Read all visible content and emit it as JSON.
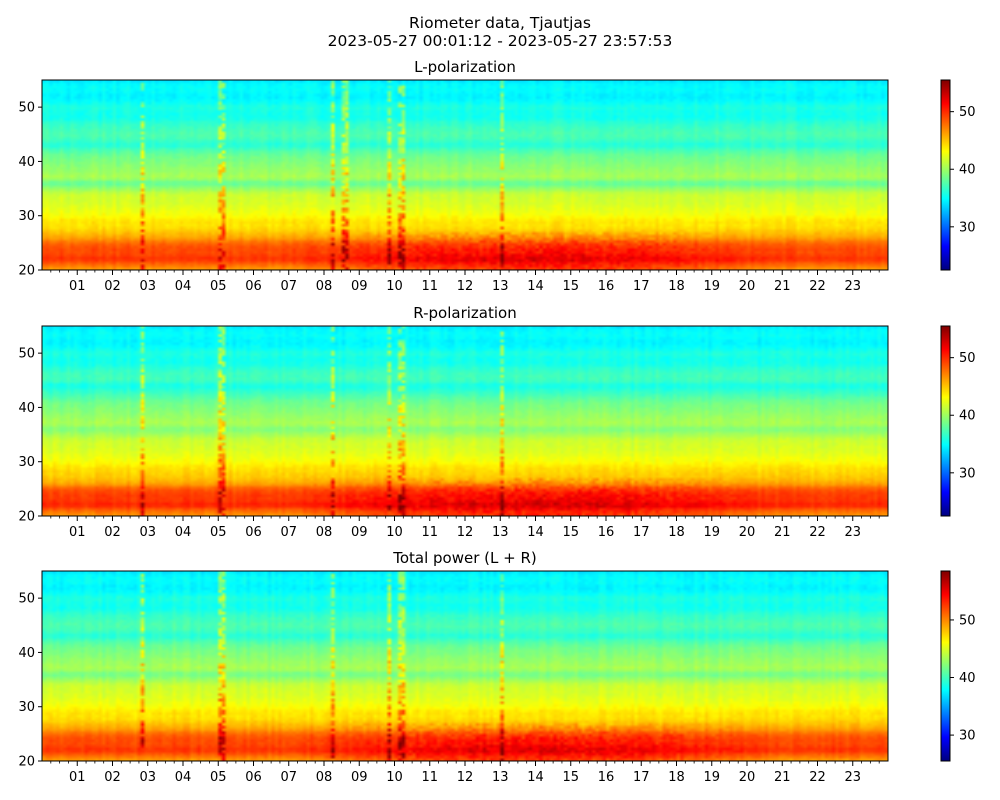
{
  "figure": {
    "title_line1": "Riometer data, Tjautjas",
    "title_line2": "2023-05-27 00:01:12 - 2023-05-27 23:57:53"
  },
  "colormap": [
    "#00007f",
    "#0000ff",
    "#007fff",
    "#00ffff",
    "#7fff7f",
    "#ffff00",
    "#ff7f00",
    "#ff0000",
    "#7f0000"
  ],
  "chart_data": [
    {
      "type": "heatmap",
      "title": "L-polarization",
      "xlabel": "",
      "ylabel": "",
      "x_unit": "hour of day (UTC)",
      "xlim": [
        0,
        24
      ],
      "ylim": [
        20,
        55
      ],
      "x_tick_labels": [
        "01",
        "02",
        "03",
        "04",
        "05",
        "06",
        "07",
        "08",
        "09",
        "10",
        "11",
        "12",
        "13",
        "14",
        "15",
        "16",
        "17",
        "18",
        "19",
        "20",
        "21",
        "22",
        "23"
      ],
      "y_ticks": [
        20,
        30,
        40,
        50
      ],
      "color_range": [
        22.5,
        55.5
      ],
      "colorbar_ticks": [
        30,
        40,
        50
      ],
      "profile_y": [
        20,
        21,
        22,
        23,
        24,
        25,
        26,
        27,
        28,
        29,
        30,
        32,
        34,
        36,
        37,
        38,
        40,
        41,
        42,
        43,
        44,
        45,
        46,
        47,
        48,
        49,
        50,
        51,
        52,
        53,
        54,
        55
      ],
      "profile_values": [
        46,
        48,
        50,
        49,
        49,
        48,
        46,
        45,
        44,
        44,
        43,
        42,
        41.5,
        38,
        40.5,
        40,
        39,
        38.5,
        37.5,
        36,
        37,
        37.5,
        37,
        36.5,
        35.5,
        35.5,
        36,
        35,
        34.5,
        35,
        35,
        34
      ],
      "activity_window_hours": [
        7,
        21
      ],
      "activity_increase": 3,
      "spike_hours": [
        2.85,
        5.1,
        8.25,
        8.6,
        9.85,
        10.2,
        13.05
      ]
    },
    {
      "type": "heatmap",
      "title": "R-polarization",
      "xlabel": "",
      "ylabel": "",
      "x_unit": "hour of day (UTC)",
      "xlim": [
        0,
        24
      ],
      "ylim": [
        20,
        55
      ],
      "x_tick_labels": [
        "01",
        "02",
        "03",
        "04",
        "05",
        "06",
        "07",
        "08",
        "09",
        "10",
        "11",
        "12",
        "13",
        "14",
        "15",
        "16",
        "17",
        "18",
        "19",
        "20",
        "21",
        "22",
        "23"
      ],
      "y_ticks": [
        20,
        30,
        40,
        50
      ],
      "color_range": [
        22.5,
        55.5
      ],
      "colorbar_ticks": [
        30,
        40,
        50
      ],
      "profile_y": [
        20,
        21,
        22,
        23,
        24,
        25,
        26,
        27,
        28,
        29,
        30,
        32,
        34,
        36,
        37,
        38,
        40,
        41,
        42,
        43,
        44,
        45,
        46,
        47,
        48,
        49,
        50,
        51,
        52,
        53,
        54,
        55
      ],
      "profile_values": [
        46.5,
        48,
        50.5,
        49.5,
        49.5,
        48.5,
        46,
        45,
        44.5,
        44,
        43,
        42,
        41.5,
        39,
        40.5,
        40,
        39,
        38.5,
        37.5,
        36.5,
        35.5,
        37,
        37,
        36.5,
        35.5,
        35.5,
        36,
        35,
        34.5,
        35,
        35,
        34
      ],
      "activity_window_hours": [
        7,
        21
      ],
      "activity_increase": 3,
      "spike_hours": [
        2.85,
        5.1,
        8.25,
        9.85,
        10.2,
        13.05
      ]
    },
    {
      "type": "heatmap",
      "title": "Total power (L + R)",
      "xlabel": "",
      "ylabel": "",
      "x_unit": "hour of day (UTC)",
      "xlim": [
        0,
        24
      ],
      "ylim": [
        20,
        55
      ],
      "x_tick_labels": [
        "01",
        "02",
        "03",
        "04",
        "05",
        "06",
        "07",
        "08",
        "09",
        "10",
        "11",
        "12",
        "13",
        "14",
        "15",
        "16",
        "17",
        "18",
        "19",
        "20",
        "21",
        "22",
        "23"
      ],
      "y_ticks": [
        20,
        30,
        40,
        50
      ],
      "color_range": [
        25.5,
        58.5
      ],
      "colorbar_ticks": [
        30,
        40,
        50
      ],
      "profile_y": [
        20,
        21,
        22,
        23,
        24,
        25,
        26,
        27,
        28,
        29,
        30,
        32,
        34,
        36,
        37,
        38,
        40,
        41,
        42,
        43,
        44,
        45,
        46,
        47,
        48,
        49,
        50,
        51,
        52,
        53,
        54,
        55
      ],
      "profile_values": [
        49,
        51,
        53,
        52,
        52,
        51,
        49,
        48,
        47,
        47,
        46,
        45,
        44.5,
        41.5,
        43.5,
        43,
        42,
        41.5,
        40.5,
        39,
        40,
        40.5,
        40,
        39.5,
        38.5,
        38.5,
        39,
        38,
        37.5,
        38,
        38,
        37
      ],
      "activity_window_hours": [
        7,
        21
      ],
      "activity_increase": 3,
      "spike_hours": [
        2.85,
        5.1,
        8.25,
        9.85,
        10.2,
        13.05
      ]
    }
  ]
}
